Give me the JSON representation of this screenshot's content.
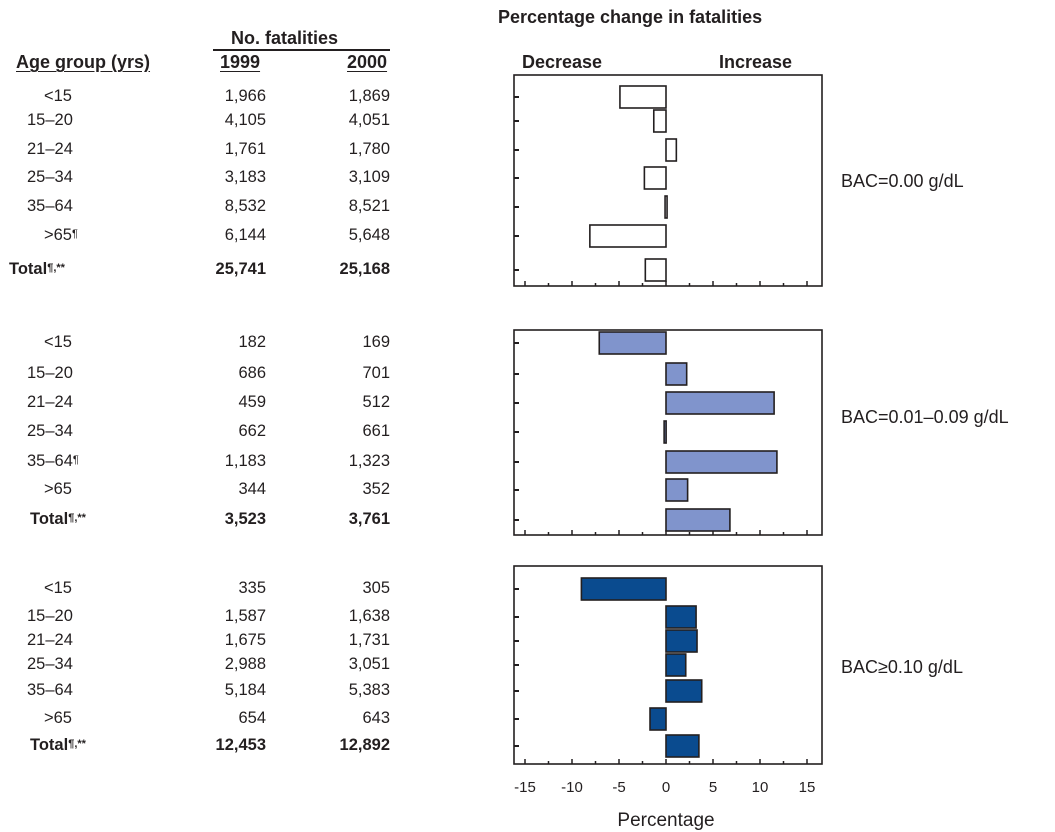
{
  "table": {
    "header_fatalities": "No. fatalities",
    "header_age": "Age group (yrs)",
    "header_1999": "1999",
    "header_2000": "2000"
  },
  "chart_title": "Percentage change in fatalities",
  "decrease_label": "Decrease",
  "increase_label": "Increase",
  "colors": {
    "panel0": "#ffffff",
    "panel1": "#8094cc",
    "panel2": "#0a4b8f",
    "stroke": "#231f20"
  },
  "chart_data": [
    {
      "type": "bar",
      "panel_label": "BAC=0.00 g/dL",
      "categories": [
        "<15",
        "15–20",
        "21–24",
        "25–34",
        "35–64",
        ">65",
        "Total"
      ],
      "rows": [
        {
          "age": "<15",
          "sup": "",
          "v1999": "1,966",
          "v2000": "1,869",
          "bold": false
        },
        {
          "age": "15–20",
          "sup": "",
          "v1999": "4,105",
          "v2000": "4,051",
          "bold": false
        },
        {
          "age": "21–24",
          "sup": "",
          "v1999": "1,761",
          "v2000": "1,780",
          "bold": false
        },
        {
          "age": "25–34",
          "sup": "",
          "v1999": "3,183",
          "v2000": "3,109",
          "bold": false
        },
        {
          "age": "35–64",
          "sup": "",
          "v1999": "8,532",
          "v2000": "8,521",
          "bold": false
        },
        {
          "age": ">65",
          "sup": "¶",
          "v1999": "6,144",
          "v2000": "5,648",
          "bold": false
        },
        {
          "age": "Total",
          "sup": "¶,**",
          "v1999": "25,741",
          "v2000": "25,168",
          "bold": true
        }
      ],
      "values": [
        -4.9,
        -1.3,
        1.1,
        -2.3,
        -0.1,
        -8.1,
        -2.2
      ],
      "xlim": [
        -16,
        16
      ]
    },
    {
      "type": "bar",
      "panel_label": "BAC=0.01–0.09 g/dL",
      "categories": [
        "<15",
        "15–20",
        "21–24",
        "25–34",
        "35–64",
        ">65",
        "Total"
      ],
      "rows": [
        {
          "age": "<15",
          "sup": "",
          "v1999": "182",
          "v2000": "169",
          "bold": false
        },
        {
          "age": "15–20",
          "sup": "",
          "v1999": "686",
          "v2000": "701",
          "bold": false
        },
        {
          "age": "21–24",
          "sup": "",
          "v1999": "459",
          "v2000": "512",
          "bold": false
        },
        {
          "age": "25–34",
          "sup": "",
          "v1999": "662",
          "v2000": "661",
          "bold": false
        },
        {
          "age": "35–64",
          "sup": "¶",
          "v1999": "1,183",
          "v2000": "1,323",
          "bold": false
        },
        {
          "age": ">65",
          "sup": "",
          "v1999": "344",
          "v2000": "352",
          "bold": false
        },
        {
          "age": "Total",
          "sup": "¶,**",
          "v1999": "3,523",
          "v2000": "3,761",
          "bold": true
        }
      ],
      "values": [
        -7.1,
        2.2,
        11.5,
        -0.2,
        11.8,
        2.3,
        6.8
      ],
      "xlim": [
        -16,
        16
      ]
    },
    {
      "type": "bar",
      "panel_label": "BAC≥0.10 g/dL",
      "categories": [
        "<15",
        "15–20",
        "21–24",
        "25–34",
        "35–64",
        ">65",
        "Total"
      ],
      "rows": [
        {
          "age": "<15",
          "sup": "",
          "v1999": "335",
          "v2000": "305",
          "bold": false
        },
        {
          "age": "15–20",
          "sup": "",
          "v1999": "1,587",
          "v2000": "1,638",
          "bold": false
        },
        {
          "age": "21–24",
          "sup": "",
          "v1999": "1,675",
          "v2000": "1,731",
          "bold": false
        },
        {
          "age": "25–34",
          "sup": "",
          "v1999": "2,988",
          "v2000": "3,051",
          "bold": false
        },
        {
          "age": "35–64",
          "sup": "",
          "v1999": "5,184",
          "v2000": "5,383",
          "bold": false
        },
        {
          "age": ">65",
          "sup": "",
          "v1999": "654",
          "v2000": "643",
          "bold": false
        },
        {
          "age": "Total",
          "sup": "¶,**",
          "v1999": "12,453",
          "v2000": "12,892",
          "bold": true
        }
      ],
      "values": [
        -9.0,
        3.2,
        3.3,
        2.1,
        3.8,
        -1.7,
        3.5
      ],
      "xlim": [
        -16,
        16
      ],
      "xticks": [
        "-15",
        "-10",
        "-5",
        "0",
        "5",
        "10",
        "15"
      ],
      "xlabel": "Percentage"
    }
  ]
}
